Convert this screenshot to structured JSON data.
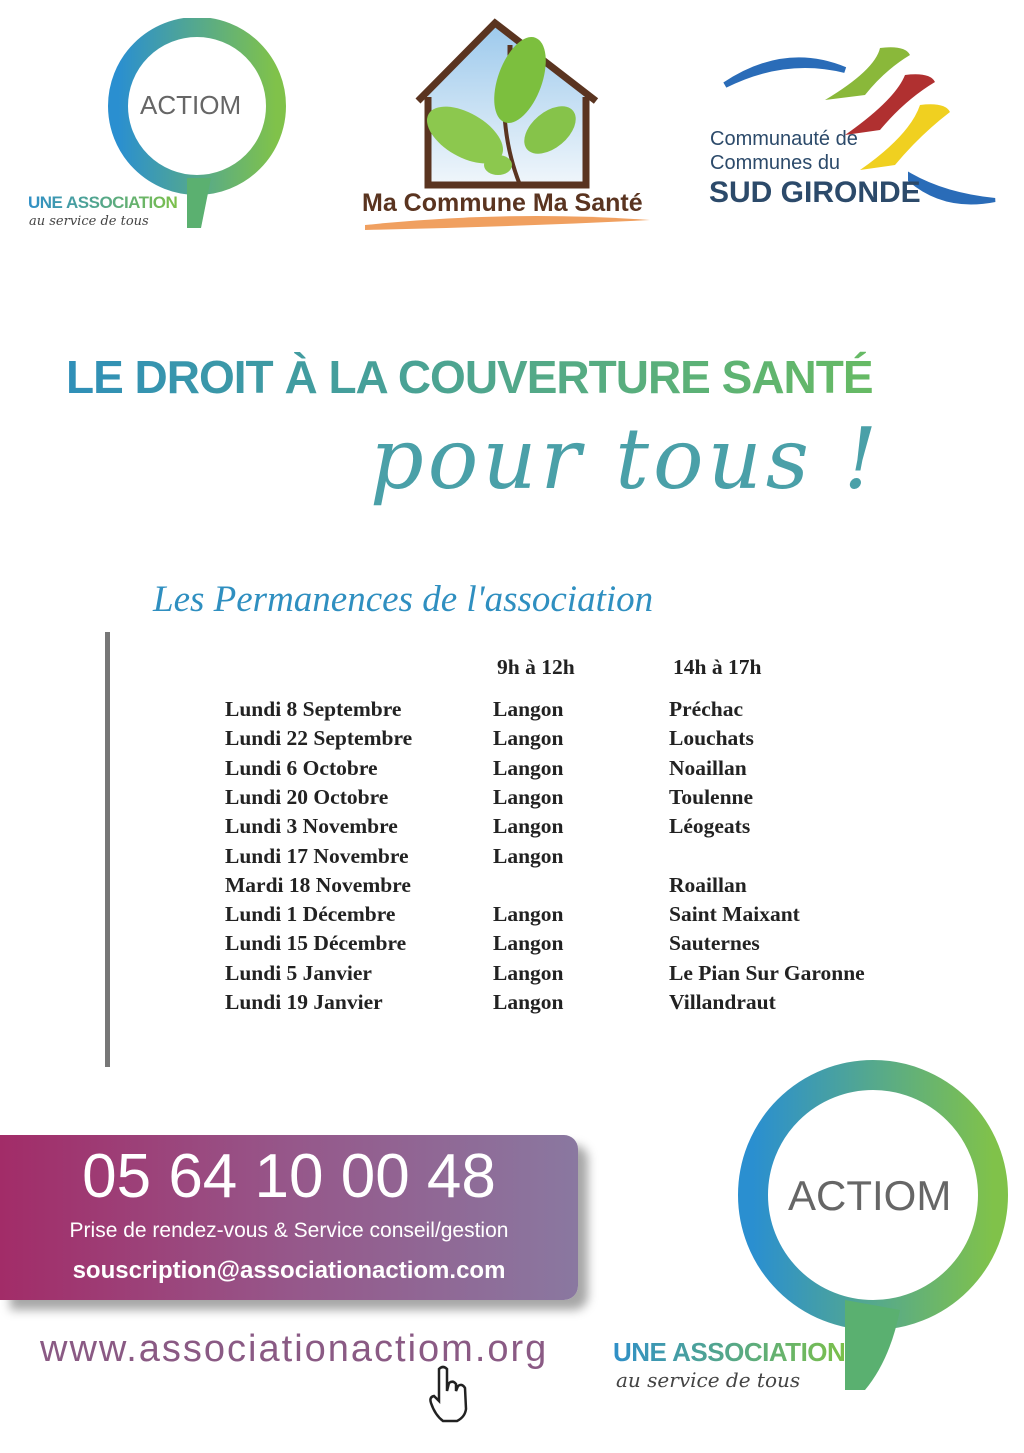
{
  "logos": {
    "actiom": {
      "name": "ACTIOM",
      "line1": "UNE ASSOCIATION",
      "line2": "au service de tous"
    },
    "ma_commune": {
      "name": "Ma Commune Ma Santé"
    },
    "sud_gironde": {
      "line1": "Communauté de",
      "line2": "Communes du",
      "line3": "SUD GIRONDE"
    }
  },
  "headline": "LE DROIT À LA COUVERTURE SANTÉ",
  "headline_script": "pour tous !",
  "subtitle": "Les Permanences de l'association",
  "schedule": {
    "headers": [
      "",
      "9h à 12h",
      "14h à 17h"
    ],
    "rows": [
      [
        "Lundi 8 Septembre",
        "Langon",
        "Préchac"
      ],
      [
        "Lundi 22 Septembre",
        "Langon",
        "Louchats"
      ],
      [
        "Lundi 6 Octobre",
        "Langon",
        "Noaillan"
      ],
      [
        "Lundi 20 Octobre",
        "Langon",
        "Toulenne"
      ],
      [
        "Lundi 3 Novembre",
        "Langon",
        "Léogeats"
      ],
      [
        "Lundi 17 Novembre",
        "Langon",
        ""
      ],
      [
        "Mardi 18 Novembre",
        "",
        "Roaillan"
      ],
      [
        "Lundi 1 Décembre",
        "Langon",
        "Saint Maixant"
      ],
      [
        "Lundi 15 Décembre",
        "Langon",
        "Sauternes"
      ],
      [
        "Lundi 5 Janvier",
        "Langon",
        "Le Pian Sur Garonne"
      ],
      [
        "Lundi 19 Janvier",
        "Langon",
        "Villandraut"
      ]
    ]
  },
  "contact": {
    "phone": "05 64 10 00 48",
    "description": "Prise de rendez-vous & Service conseil/gestion",
    "email": "souscription@associationactiom.com",
    "website": "www.associationactiom.org"
  },
  "colors": {
    "blue": "#2f8fc8",
    "green": "#7cc04a",
    "magenta": "#a22c68",
    "mauve": "#8a78a0"
  },
  "icons": [
    "hand-pointer-icon"
  ]
}
